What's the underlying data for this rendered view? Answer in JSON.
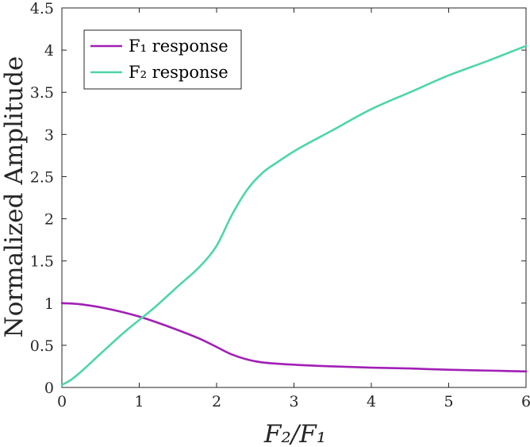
{
  "chart_data": {
    "type": "line",
    "title": "",
    "xlabel": "F₂/F₁",
    "ylabel": "Normalized Amplitude",
    "xlim": [
      0,
      6
    ],
    "ylim": [
      0,
      4.5
    ],
    "xticks": [
      0,
      1,
      2,
      3,
      4,
      5,
      6
    ],
    "yticks": [
      0,
      0.5,
      1,
      1.5,
      2,
      2.5,
      3,
      3.5,
      4,
      4.5
    ],
    "xtick_labels": [
      "0",
      "1",
      "2",
      "3",
      "4",
      "5",
      "6"
    ],
    "ytick_labels": [
      "0",
      "0.5",
      "1",
      "1.5",
      "2",
      "2.5",
      "3",
      "3.5",
      "4",
      "4.5"
    ],
    "grid": false,
    "legend_position": "top-left",
    "series": [
      {
        "name": "F₁ response",
        "color": "#a020b4",
        "x": [
          0,
          0.2,
          0.5,
          0.8,
          1.0,
          1.2,
          1.5,
          1.8,
          2.0,
          2.2,
          2.5,
          3.0,
          3.5,
          4.0,
          4.5,
          5.0,
          5.5,
          6.0
        ],
        "y": [
          1.0,
          0.99,
          0.95,
          0.89,
          0.84,
          0.78,
          0.68,
          0.57,
          0.48,
          0.39,
          0.31,
          0.27,
          0.25,
          0.235,
          0.225,
          0.21,
          0.2,
          0.19
        ]
      },
      {
        "name": "F₂ response",
        "color": "#4fd6a6",
        "x": [
          0,
          0.1,
          0.2,
          0.5,
          0.8,
          1.0,
          1.2,
          1.5,
          1.8,
          2.0,
          2.2,
          2.4,
          2.6,
          2.8,
          3.0,
          3.5,
          4.0,
          4.5,
          5.0,
          5.5,
          6.0
        ],
        "y": [
          0.03,
          0.08,
          0.15,
          0.4,
          0.65,
          0.8,
          0.95,
          1.2,
          1.45,
          1.68,
          2.05,
          2.35,
          2.55,
          2.68,
          2.8,
          3.05,
          3.3,
          3.5,
          3.7,
          3.87,
          4.05
        ]
      }
    ]
  }
}
